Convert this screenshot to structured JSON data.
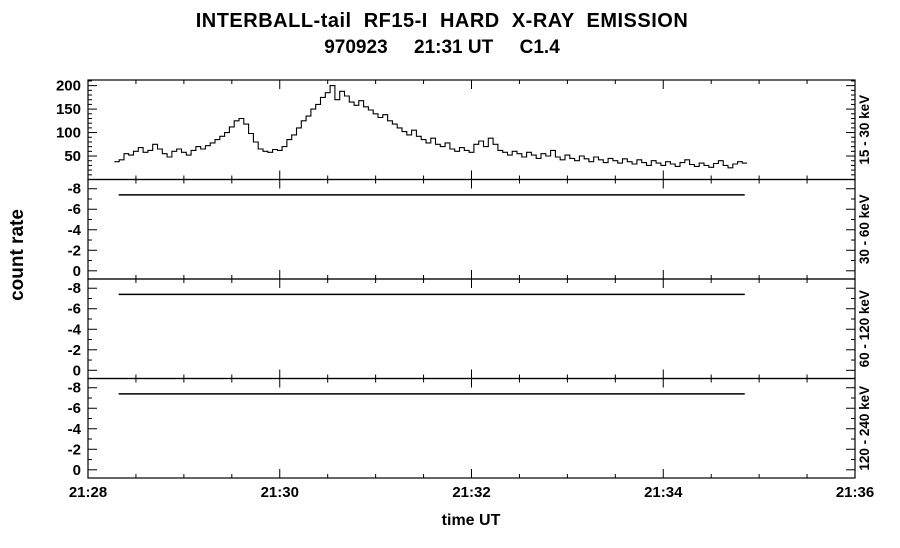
{
  "chart_data": {
    "type": "line",
    "title": "INTERBALL-tail  RF15-I  HARD  X-RAY  EMISSION",
    "subtitle": "970923     21:31 UT     C1.4",
    "xlabel": "time UT",
    "ylabel": "count rate",
    "colors": {
      "line": "#000000",
      "background": "#ffffff"
    },
    "x_axis": {
      "tick_labels": [
        "21:28",
        "21:30",
        "21:32",
        "21:34",
        "21:36"
      ],
      "tick_minutes": [
        0,
        2,
        4,
        6,
        8
      ],
      "range_minutes": [
        0,
        8
      ],
      "minor_step": 0.5
    },
    "panels": [
      {
        "label": "15 - 30 keV",
        "ylim": [
          212,
          0
        ],
        "yticks": [
          50,
          100,
          150,
          200
        ],
        "minor_step": 10,
        "series": {
          "style": "histogram-step",
          "x_start": 0.3,
          "dt": 0.05,
          "y": [
            38,
            42,
            55,
            52,
            60,
            68,
            58,
            62,
            75,
            65,
            55,
            48,
            60,
            65,
            58,
            52,
            62,
            70,
            65,
            72,
            78,
            85,
            92,
            100,
            112,
            125,
            130,
            118,
            98,
            80,
            65,
            60,
            58,
            64,
            62,
            70,
            85,
            95,
            110,
            125,
            135,
            150,
            160,
            175,
            185,
            200,
            170,
            188,
            178,
            165,
            158,
            168,
            155,
            148,
            140,
            132,
            138,
            125,
            118,
            110,
            102,
            95,
            105,
            92,
            85,
            78,
            88,
            75,
            70,
            78,
            65,
            60,
            68,
            62,
            58,
            75,
            82,
            70,
            88,
            75,
            62,
            58,
            52,
            60,
            55,
            48,
            58,
            52,
            45,
            55,
            50,
            62,
            48,
            42,
            52,
            45,
            40,
            50,
            44,
            38,
            48,
            42,
            36,
            45,
            40,
            35,
            44,
            38,
            33,
            42,
            36,
            30,
            40,
            35,
            30,
            38,
            33,
            28,
            36,
            42,
            32,
            28,
            35,
            30,
            26,
            34,
            40,
            30,
            25,
            33,
            38,
            35
          ]
        }
      },
      {
        "label": "30 - 60 keV",
        "ylim": [
          -8.9,
          0.8
        ],
        "yticks": [
          -8,
          -6,
          -4,
          -2,
          0
        ],
        "minor_step": 1,
        "flat": {
          "x_start": 0.32,
          "x_end": 6.85,
          "y": -7.4
        }
      },
      {
        "label": "60 - 120 keV",
        "ylim": [
          -8.9,
          0.8
        ],
        "yticks": [
          -8,
          -6,
          -4,
          -2,
          0
        ],
        "minor_step": 1,
        "flat": {
          "x_start": 0.32,
          "x_end": 6.85,
          "y": -7.4
        }
      },
      {
        "label": "120 - 240 keV",
        "ylim": [
          -8.9,
          0.8
        ],
        "yticks": [
          -8,
          -6,
          -4,
          -2,
          0
        ],
        "minor_step": 1,
        "flat": {
          "x_start": 0.32,
          "x_end": 6.85,
          "y": -7.4
        }
      }
    ]
  }
}
